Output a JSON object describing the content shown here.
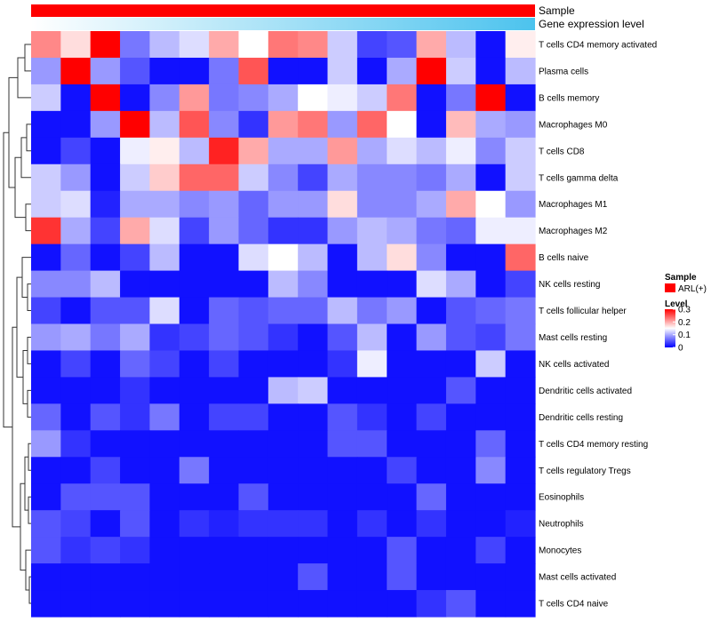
{
  "chart_data": {
    "type": "heatmap",
    "title": "",
    "annotations": [
      {
        "name": "Sample",
        "color": "#ff0000"
      },
      {
        "name": "Gene expression level",
        "gradient_from": "#ffffff",
        "gradient_to": "#4cc3ee"
      }
    ],
    "rows": [
      "T cells CD4 memory activated",
      "Plasma cells",
      "B cells memory",
      "Macrophages M0",
      "T cells CD8",
      "T cells gamma delta",
      "Macrophages M1",
      "Macrophages M2",
      "B cells naive",
      "NK cells resting",
      "T cells follicular helper",
      "Mast cells resting",
      "NK cells activated",
      "Dendritic cells activated",
      "Dendritic cells resting",
      "T cells CD4 memory resting",
      "T cells regulatory  Tregs",
      "Eosinophils",
      "Neutrophils",
      "Monocytes",
      "Mast cells activated",
      "T cells CD4 naive"
    ],
    "n_columns": 17,
    "values": [
      [
        0.22,
        0.17,
        0.3,
        0.07,
        0.11,
        0.13,
        0.2,
        0.15,
        0.23,
        0.22,
        0.12,
        0.04,
        0.05,
        0.2,
        0.11,
        0.01,
        0.16
      ],
      [
        0.09,
        0.3,
        0.09,
        0.05,
        0.01,
        0.01,
        0.07,
        0.25,
        0.01,
        0.01,
        0.12,
        0.01,
        0.1,
        0.3,
        0.12,
        0.01,
        0.11
      ],
      [
        0.12,
        0.01,
        0.3,
        0.01,
        0.08,
        0.21,
        0.07,
        0.08,
        0.1,
        0.15,
        0.14,
        0.12,
        0.23,
        0.01,
        0.07,
        0.3,
        0.01
      ],
      [
        0.01,
        0.01,
        0.09,
        0.3,
        0.11,
        0.25,
        0.08,
        0.03,
        0.21,
        0.23,
        0.09,
        0.24,
        0.15,
        0.01,
        0.19,
        0.1,
        0.09
      ],
      [
        0.01,
        0.04,
        0.01,
        0.14,
        0.16,
        0.11,
        0.28,
        0.2,
        0.1,
        0.1,
        0.21,
        0.1,
        0.13,
        0.11,
        0.14,
        0.08,
        0.12
      ],
      [
        0.12,
        0.09,
        0.01,
        0.12,
        0.18,
        0.24,
        0.24,
        0.12,
        0.08,
        0.04,
        0.1,
        0.08,
        0.08,
        0.07,
        0.1,
        0.01,
        0.12
      ],
      [
        0.12,
        0.13,
        0.02,
        0.1,
        0.1,
        0.08,
        0.09,
        0.06,
        0.09,
        0.09,
        0.17,
        0.08,
        0.08,
        0.1,
        0.2,
        0.15,
        0.09
      ],
      [
        0.27,
        0.1,
        0.04,
        0.2,
        0.13,
        0.04,
        0.09,
        0.06,
        0.03,
        0.03,
        0.09,
        0.11,
        0.1,
        0.07,
        0.06,
        0.14,
        0.14
      ],
      [
        0.01,
        0.06,
        0.01,
        0.04,
        0.11,
        0.01,
        0.01,
        0.13,
        0.15,
        0.11,
        0.01,
        0.11,
        0.17,
        0.08,
        0.01,
        0.01,
        0.24
      ],
      [
        0.08,
        0.08,
        0.11,
        0.01,
        0.01,
        0.01,
        0.01,
        0.01,
        0.11,
        0.08,
        0.01,
        0.01,
        0.01,
        0.13,
        0.1,
        0.01,
        0.04
      ],
      [
        0.04,
        0.01,
        0.05,
        0.05,
        0.13,
        0.01,
        0.06,
        0.05,
        0.06,
        0.06,
        0.11,
        0.07,
        0.09,
        0.01,
        0.05,
        0.06,
        0.07
      ],
      [
        0.09,
        0.1,
        0.07,
        0.1,
        0.03,
        0.04,
        0.06,
        0.05,
        0.03,
        0.01,
        0.05,
        0.11,
        0.01,
        0.09,
        0.05,
        0.04,
        0.07
      ],
      [
        0.01,
        0.04,
        0.01,
        0.06,
        0.04,
        0.01,
        0.04,
        0.01,
        0.01,
        0.01,
        0.03,
        0.14,
        0.01,
        0.01,
        0.01,
        0.12,
        0.01
      ],
      [
        0.01,
        0.01,
        0.01,
        0.03,
        0.01,
        0.01,
        0.01,
        0.01,
        0.11,
        0.12,
        0.01,
        0.01,
        0.01,
        0.01,
        0.05,
        0.01,
        0.01
      ],
      [
        0.06,
        0.01,
        0.05,
        0.03,
        0.07,
        0.01,
        0.04,
        0.04,
        0.01,
        0.01,
        0.05,
        0.03,
        0.01,
        0.04,
        0.01,
        0.01,
        0.01
      ],
      [
        0.09,
        0.03,
        0.01,
        0.01,
        0.01,
        0.01,
        0.01,
        0.01,
        0.01,
        0.01,
        0.05,
        0.05,
        0.01,
        0.01,
        0.01,
        0.06,
        0.01
      ],
      [
        0.01,
        0.01,
        0.04,
        0.01,
        0.01,
        0.07,
        0.01,
        0.01,
        0.01,
        0.01,
        0.01,
        0.01,
        0.04,
        0.01,
        0.01,
        0.08,
        0.01
      ],
      [
        0.01,
        0.05,
        0.05,
        0.05,
        0.01,
        0.01,
        0.01,
        0.05,
        0.01,
        0.01,
        0.01,
        0.01,
        0.01,
        0.06,
        0.01,
        0.01,
        0.01
      ],
      [
        0.05,
        0.04,
        0.01,
        0.05,
        0.01,
        0.03,
        0.02,
        0.03,
        0.03,
        0.03,
        0.01,
        0.03,
        0.01,
        0.03,
        0.01,
        0.01,
        0.02
      ],
      [
        0.05,
        0.03,
        0.04,
        0.03,
        0.01,
        0.01,
        0.01,
        0.01,
        0.01,
        0.01,
        0.01,
        0.01,
        0.05,
        0.01,
        0.01,
        0.04,
        0.01
      ],
      [
        0.01,
        0.01,
        0.01,
        0.01,
        0.01,
        0.01,
        0.01,
        0.01,
        0.01,
        0.05,
        0.01,
        0.01,
        0.05,
        0.01,
        0.01,
        0.01,
        0.01
      ],
      [
        0.01,
        0.01,
        0.01,
        0.01,
        0.01,
        0.01,
        0.01,
        0.01,
        0.01,
        0.01,
        0.01,
        0.01,
        0.01,
        0.03,
        0.05,
        0.01,
        0.01
      ]
    ],
    "color_scale": {
      "min": 0,
      "mid": 0.15,
      "max": 0.3,
      "low_color": "#0000ff",
      "mid_color": "#ffffff",
      "high_color": "#ff0000"
    },
    "legend": {
      "sample_title": "Sample",
      "sample_entry": "ARL(+)",
      "sample_color": "#ff0000",
      "level_title": "Level",
      "level_ticks": [
        0.3,
        0.2,
        0.1,
        0
      ],
      "level_tick_labels": [
        "0.3",
        "0.2",
        "0.1",
        "0"
      ]
    },
    "dendrogram": "left"
  }
}
